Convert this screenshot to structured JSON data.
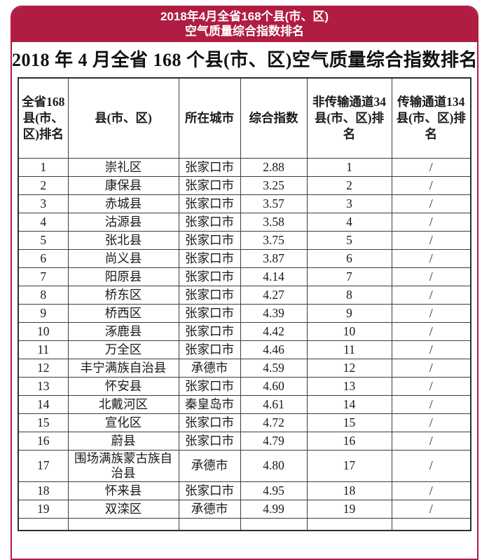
{
  "banner": {
    "line1": "2018年4月全省168个县(市、区)",
    "line2": "空气质量综合指数排名"
  },
  "title": "2018 年 4 月全省 168 个县(市、区)空气质量综合指数排名",
  "colors": {
    "banner_bg": "#b01c42",
    "banner_text": "#ffffff",
    "table_border": "#3d3d3d"
  },
  "table": {
    "headers": [
      "全省168县(市、区)排名",
      "县(市、区)",
      "所在城市",
      "综合指数",
      "非传输通道34县(市、区)排名",
      "传输通道134县(市、区)排名"
    ],
    "rows": [
      [
        "1",
        "崇礼区",
        "张家口市",
        "2.88",
        "1",
        "/"
      ],
      [
        "2",
        "康保县",
        "张家口市",
        "3.25",
        "2",
        "/"
      ],
      [
        "3",
        "赤城县",
        "张家口市",
        "3.57",
        "3",
        "/"
      ],
      [
        "4",
        "沽源县",
        "张家口市",
        "3.58",
        "4",
        "/"
      ],
      [
        "5",
        "张北县",
        "张家口市",
        "3.75",
        "5",
        "/"
      ],
      [
        "6",
        "尚义县",
        "张家口市",
        "3.87",
        "6",
        "/"
      ],
      [
        "7",
        "阳原县",
        "张家口市",
        "4.14",
        "7",
        "/"
      ],
      [
        "8",
        "桥东区",
        "张家口市",
        "4.27",
        "8",
        "/"
      ],
      [
        "9",
        "桥西区",
        "张家口市",
        "4.39",
        "9",
        "/"
      ],
      [
        "10",
        "涿鹿县",
        "张家口市",
        "4.42",
        "10",
        "/"
      ],
      [
        "11",
        "万全区",
        "张家口市",
        "4.46",
        "11",
        "/"
      ],
      [
        "12",
        "丰宁满族自治县",
        "承德市",
        "4.59",
        "12",
        "/"
      ],
      [
        "13",
        "怀安县",
        "张家口市",
        "4.60",
        "13",
        "/"
      ],
      [
        "14",
        "北戴河区",
        "秦皇岛市",
        "4.61",
        "14",
        "/"
      ],
      [
        "15",
        "宣化区",
        "张家口市",
        "4.72",
        "15",
        "/"
      ],
      [
        "16",
        "蔚县",
        "张家口市",
        "4.79",
        "16",
        "/"
      ],
      [
        "17",
        "围场满族蒙古族自治县",
        "承德市",
        "4.80",
        "17",
        "/"
      ],
      [
        "18",
        "怀来县",
        "张家口市",
        "4.95",
        "18",
        "/"
      ],
      [
        "19",
        "双滦区",
        "承德市",
        "4.99",
        "19",
        "/"
      ]
    ]
  }
}
